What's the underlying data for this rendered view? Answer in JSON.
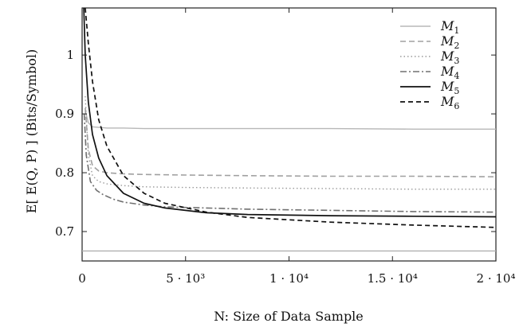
{
  "chart_data": {
    "type": "line",
    "xlabel": "N: Size of Data Sample",
    "ylabel": "E[ E(Q, P) ] (Bits/Symbol)",
    "xlim": [
      0,
      20000
    ],
    "ylim": [
      0.65,
      1.08
    ],
    "x_ticks": [
      {
        "value": 0,
        "label": "0"
      },
      {
        "value": 5000,
        "label": "5 · 10³"
      },
      {
        "value": 10000,
        "label": "1 · 10⁴"
      },
      {
        "value": 15000,
        "label": "1.5 · 10⁴"
      },
      {
        "value": 20000,
        "label": "2 · 10⁴"
      }
    ],
    "y_ticks": [
      {
        "value": 0.7,
        "label": "0.7"
      },
      {
        "value": 0.8,
        "label": "0.8"
      },
      {
        "value": 0.9,
        "label": "0.9"
      },
      {
        "value": 1.0,
        "label": "1"
      }
    ],
    "grid": false,
    "legend_position": "top-right",
    "reference_line": {
      "y": 0.667,
      "color": "#b0b0b0"
    },
    "series": [
      {
        "name": "M1",
        "legend_main": "M",
        "legend_sub": "1",
        "color": "#b8b8b8",
        "dash": "",
        "width": 1.4,
        "x": [
          150,
          300,
          500,
          800,
          1200,
          2000,
          3000,
          5000,
          8000,
          12000,
          16000,
          20000
        ],
        "y": [
          0.905,
          0.885,
          0.878,
          0.877,
          0.876,
          0.876,
          0.875,
          0.875,
          0.875,
          0.875,
          0.874,
          0.874
        ]
      },
      {
        "name": "M2",
        "legend_main": "M",
        "legend_sub": "2",
        "color": "#a0a0a0",
        "dash": "7,4",
        "width": 1.6,
        "x": [
          150,
          300,
          500,
          800,
          1200,
          2000,
          3000,
          5000,
          8000,
          12000,
          16000,
          20000
        ],
        "y": [
          0.91,
          0.84,
          0.812,
          0.803,
          0.8,
          0.798,
          0.797,
          0.796,
          0.795,
          0.794,
          0.794,
          0.793
        ]
      },
      {
        "name": "M3",
        "legend_main": "M",
        "legend_sub": "3",
        "color": "#9a9a9a",
        "dash": "1.5,3",
        "width": 1.4,
        "x": [
          150,
          300,
          500,
          800,
          1200,
          2000,
          3000,
          5000,
          8000,
          12000,
          16000,
          20000
        ],
        "y": [
          0.93,
          0.83,
          0.795,
          0.785,
          0.781,
          0.778,
          0.776,
          0.775,
          0.774,
          0.773,
          0.772,
          0.772
        ]
      },
      {
        "name": "M4",
        "legend_main": "M",
        "legend_sub": "4",
        "color": "#707070",
        "dash": "8,3,2,3",
        "width": 1.6,
        "x": [
          100,
          200,
          400,
          700,
          1000,
          1500,
          2000,
          3000,
          4000,
          6000,
          8000,
          12000,
          16000,
          20000
        ],
        "y": [
          0.9,
          0.83,
          0.785,
          0.77,
          0.763,
          0.755,
          0.75,
          0.745,
          0.742,
          0.74,
          0.738,
          0.736,
          0.734,
          0.733
        ]
      },
      {
        "name": "M5",
        "legend_main": "M",
        "legend_sub": "5",
        "color": "#111111",
        "dash": "",
        "width": 1.7,
        "x": [
          80,
          150,
          300,
          500,
          800,
          1200,
          2000,
          3000,
          4000,
          6000,
          8000,
          12000,
          16000,
          20000
        ],
        "y": [
          1.08,
          1.0,
          0.92,
          0.865,
          0.825,
          0.795,
          0.765,
          0.748,
          0.74,
          0.732,
          0.729,
          0.727,
          0.726,
          0.725
        ]
      },
      {
        "name": "M6",
        "legend_main": "M",
        "legend_sub": "6",
        "color": "#111111",
        "dash": "6,4",
        "width": 1.7,
        "x": [
          150,
          300,
          500,
          800,
          1200,
          2000,
          3000,
          4000,
          6000,
          8000,
          12000,
          16000,
          20000
        ],
        "y": [
          1.08,
          1.02,
          0.955,
          0.89,
          0.845,
          0.795,
          0.765,
          0.748,
          0.733,
          0.724,
          0.716,
          0.711,
          0.707
        ]
      }
    ]
  }
}
